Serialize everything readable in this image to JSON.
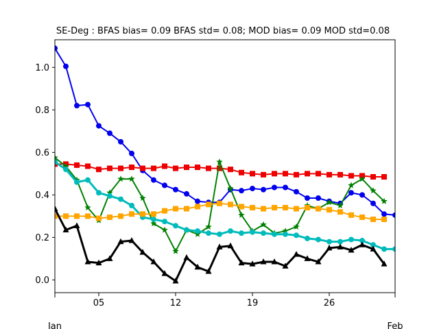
{
  "chart_data": {
    "type": "line",
    "title": "SE-Deg   : BFAS bias= 0.09 BFAS std= 0.08; MOD bias= 0.09 MOD std=0.08",
    "xlabel": "",
    "ylabel": "",
    "xlim": [
      1,
      32
    ],
    "ylim": [
      -0.06,
      1.13
    ],
    "x": [
      1,
      2,
      3,
      4,
      5,
      6,
      7,
      8,
      9,
      10,
      11,
      12,
      13,
      14,
      15,
      16,
      17,
      18,
      19,
      20,
      21,
      22,
      23,
      24,
      25,
      26,
      27,
      28,
      29,
      30,
      31,
      32
    ],
    "xticks": [
      {
        "x": 5,
        "label": "05"
      },
      {
        "x": 12,
        "label": "12"
      },
      {
        "x": 19,
        "label": "19"
      },
      {
        "x": 26,
        "label": "26"
      }
    ],
    "month_labels": [
      {
        "x": 1,
        "label": "Jan"
      },
      {
        "x": 32,
        "label": "Feb"
      }
    ],
    "yticks": [
      {
        "y": 0.0,
        "label": "0.0"
      },
      {
        "y": 0.2,
        "label": "0.2"
      },
      {
        "y": 0.4,
        "label": "0.4"
      },
      {
        "y": 0.6,
        "label": "0.6"
      },
      {
        "y": 0.8,
        "label": "0.8"
      },
      {
        "y": 1.0,
        "label": "1.0"
      }
    ],
    "grid": false,
    "legend": "none",
    "series": [
      {
        "color": "#0000ee",
        "marker": "circle",
        "width": 2,
        "values": [
          1.09,
          1.005,
          0.82,
          0.825,
          0.725,
          0.69,
          0.65,
          0.595,
          0.515,
          0.47,
          0.445,
          0.425,
          0.405,
          0.37,
          0.365,
          0.365,
          0.425,
          0.42,
          0.43,
          0.425,
          0.435,
          0.435,
          0.415,
          0.385,
          0.385,
          0.37,
          0.36,
          0.41,
          0.4,
          0.36,
          0.31,
          0.305
        ]
      },
      {
        "color": "#ee0000",
        "marker": "square",
        "width": 2,
        "values": [
          0.545,
          0.545,
          0.54,
          0.535,
          0.52,
          0.525,
          0.525,
          0.53,
          0.525,
          0.525,
          0.535,
          0.525,
          0.53,
          0.53,
          0.525,
          0.525,
          0.52,
          0.505,
          0.5,
          0.495,
          0.5,
          0.5,
          0.495,
          0.5,
          0.5,
          0.495,
          0.495,
          0.49,
          0.49,
          0.485,
          0.485,
          null
        ]
      },
      {
        "color": "#008000",
        "marker": "star",
        "width": 2,
        "values": [
          0.575,
          0.535,
          0.47,
          0.34,
          0.28,
          0.41,
          0.475,
          0.475,
          0.385,
          0.265,
          0.235,
          0.135,
          0.235,
          0.215,
          0.25,
          0.555,
          0.43,
          0.305,
          0.23,
          0.26,
          0.22,
          0.23,
          0.25,
          0.35,
          0.335,
          0.365,
          0.35,
          0.445,
          0.475,
          0.42,
          0.37,
          null
        ]
      },
      {
        "color": "#00bbbb",
        "marker": "circle",
        "width": 3,
        "values": [
          0.555,
          0.52,
          0.46,
          0.47,
          0.41,
          0.395,
          0.38,
          0.35,
          0.295,
          0.285,
          0.275,
          0.255,
          0.235,
          0.23,
          0.22,
          0.215,
          0.23,
          0.22,
          0.225,
          0.22,
          0.215,
          0.215,
          0.21,
          0.195,
          0.19,
          0.18,
          0.18,
          0.19,
          0.185,
          0.165,
          0.145,
          0.145
        ]
      },
      {
        "color": "#ffa500",
        "marker": "square",
        "width": 2,
        "values": [
          0.3,
          0.3,
          0.3,
          0.3,
          0.29,
          0.295,
          0.3,
          0.31,
          0.31,
          0.31,
          0.325,
          0.335,
          0.335,
          0.345,
          0.355,
          0.36,
          0.355,
          0.345,
          0.34,
          0.335,
          0.34,
          0.34,
          0.335,
          0.34,
          0.335,
          0.33,
          0.32,
          0.305,
          0.295,
          0.285,
          0.285,
          null
        ]
      },
      {
        "color": "#000000",
        "marker": "triangle",
        "width": 3,
        "values": [
          0.335,
          0.235,
          0.255,
          0.085,
          0.08,
          0.1,
          0.18,
          0.185,
          0.13,
          0.085,
          0.03,
          -0.005,
          0.105,
          0.06,
          0.04,
          0.155,
          0.16,
          0.08,
          0.075,
          0.085,
          0.085,
          0.065,
          0.12,
          0.1,
          0.085,
          0.15,
          0.155,
          0.14,
          0.165,
          0.145,
          0.075,
          null
        ]
      }
    ]
  }
}
